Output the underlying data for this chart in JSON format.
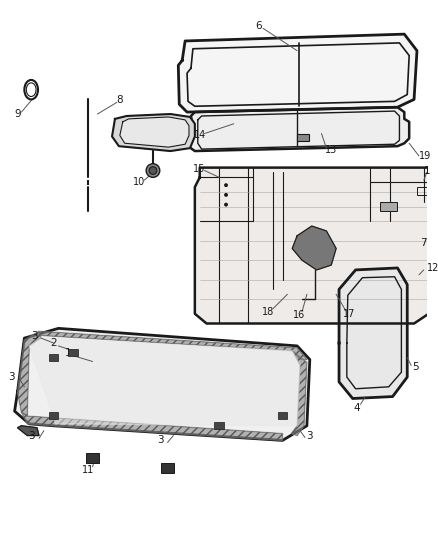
{
  "bg_color": "#ffffff",
  "line_color": "#1a1a1a",
  "label_color": "#1a1a1a",
  "figsize": [
    4.38,
    5.33
  ],
  "dpi": 100
}
